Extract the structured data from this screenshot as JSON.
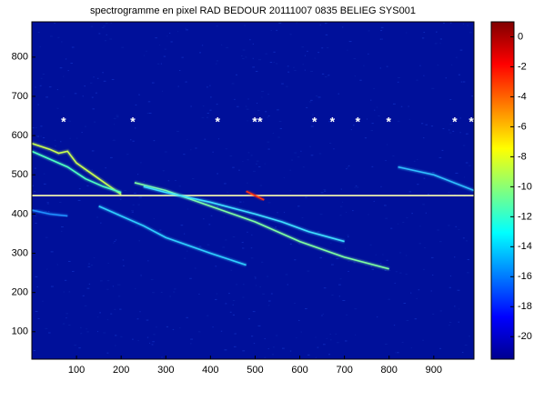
{
  "chart_data": {
    "type": "spectrogram",
    "title": "spectrogramme en pixel RAD BEDOUR 20111007 0835 BELIEG SYS001",
    "xlim": [
      0,
      990
    ],
    "ylim": [
      30,
      890
    ],
    "xticks": [
      100,
      200,
      300,
      400,
      500,
      600,
      700,
      800,
      900
    ],
    "yticks": [
      100,
      200,
      300,
      400,
      500,
      600,
      700,
      800
    ],
    "background": "#00109a",
    "series": [
      {
        "color": "#ffffb0",
        "x": [
          0,
          990
        ],
        "values": [
          447,
          447
        ]
      },
      {
        "color": "#c8ff50",
        "x": [
          0,
          40,
          60,
          80,
          100,
          150,
          200
        ],
        "values": [
          580,
          565,
          555,
          560,
          530,
          490,
          450
        ]
      },
      {
        "color": "#50ffc0",
        "x": [
          0,
          40,
          80,
          120,
          160,
          200
        ],
        "values": [
          560,
          540,
          520,
          490,
          470,
          455
        ]
      },
      {
        "color": "#80ffa0",
        "x": [
          230,
          300,
          400,
          500,
          600,
          700,
          800
        ],
        "values": [
          480,
          460,
          420,
          380,
          330,
          290,
          260
        ]
      },
      {
        "color": "#40e0ff",
        "x": [
          250,
          300,
          400,
          500,
          560,
          620,
          700
        ],
        "values": [
          470,
          455,
          430,
          400,
          380,
          355,
          330
        ]
      },
      {
        "color": "#ff3010",
        "x": [
          480,
          500,
          520
        ],
        "values": [
          458,
          447,
          436
        ]
      },
      {
        "color": "#30d0ff",
        "x": [
          150,
          250,
          300,
          400,
          480
        ],
        "values": [
          420,
          370,
          340,
          300,
          270
        ]
      },
      {
        "color": "#30c0ff",
        "x": [
          820,
          900,
          990
        ],
        "values": [
          520,
          500,
          460
        ]
      },
      {
        "color": "#2090ff",
        "x": [
          0,
          40,
          80
        ],
        "values": [
          410,
          400,
          395
        ]
      }
    ],
    "markers": {
      "symbol": "*",
      "color": "#ffffff",
      "x": [
        71,
        226,
        416,
        499,
        511,
        633,
        673,
        730,
        799,
        947,
        984
      ],
      "values": [
        640,
        640,
        640,
        640,
        640,
        640,
        640,
        640,
        640,
        640,
        640
      ]
    },
    "colorbar": {
      "colormap": "jet",
      "clim": [
        -21.5,
        1
      ],
      "ticks": [
        0,
        -2,
        -4,
        -6,
        -8,
        -10,
        -12,
        -14,
        -16,
        -18,
        -20
      ]
    }
  }
}
